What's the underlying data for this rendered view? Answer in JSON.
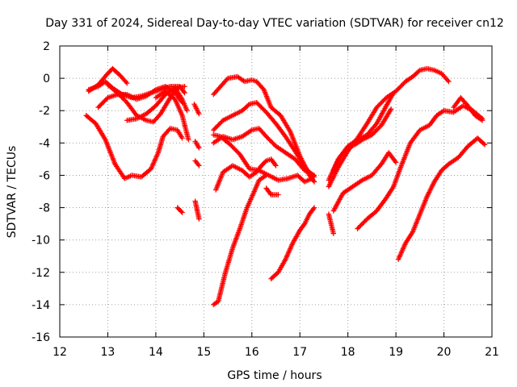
{
  "chart_data": {
    "type": "scatter",
    "title": "Day 331 of 2024, Sidereal Day-to-day VTEC variation (SDTVAR) for receiver cn12",
    "xlabel": "GPS time / hours",
    "ylabel": "SDTVAR / TECUs",
    "xlim": [
      12,
      21
    ],
    "ylim": [
      -16,
      2
    ],
    "xticks": [
      12,
      13,
      14,
      15,
      16,
      17,
      18,
      19,
      20,
      21
    ],
    "yticks": [
      -16,
      -14,
      -12,
      -10,
      -8,
      -6,
      -4,
      -2,
      0,
      2
    ],
    "grid": true,
    "marker": "+",
    "color": "#ff0000",
    "series": [
      {
        "name": "s1",
        "x": [
          12.6,
          12.8,
          13.0,
          13.1,
          13.25,
          13.4
        ],
        "y": [
          -0.8,
          -0.4,
          0.3,
          0.6,
          0.2,
          -0.3
        ]
      },
      {
        "name": "s2",
        "x": [
          12.6,
          12.8,
          12.95,
          13.1,
          13.3,
          13.5,
          13.7,
          13.9,
          14.1,
          14.3,
          14.5,
          14.6
        ],
        "y": [
          -0.7,
          -0.5,
          -0.2,
          -0.6,
          -1.0,
          -1.2,
          -1.1,
          -0.9,
          -0.7,
          -0.5,
          -0.5,
          -0.9
        ]
      },
      {
        "name": "s3",
        "x": [
          12.8,
          13.0,
          13.2,
          13.4,
          13.6,
          13.8,
          14.0,
          14.2,
          14.4,
          14.55
        ],
        "y": [
          -1.8,
          -1.2,
          -1.0,
          -1.0,
          -1.3,
          -1.1,
          -0.7,
          -0.5,
          -0.9,
          -1.5
        ]
      },
      {
        "name": "s4",
        "x": [
          13.0,
          13.2,
          13.4,
          13.6,
          13.8,
          13.95,
          14.1,
          14.3,
          14.45,
          14.6
        ],
        "y": [
          -0.4,
          -0.9,
          -1.5,
          -2.3,
          -2.6,
          -2.7,
          -2.2,
          -1.2,
          -0.6,
          -0.5
        ]
      },
      {
        "name": "s5",
        "x": [
          13.4,
          13.6,
          13.8,
          14.0,
          14.2,
          14.4,
          14.55,
          14.65
        ],
        "y": [
          -2.6,
          -2.5,
          -2.2,
          -1.7,
          -1.0,
          -0.6,
          -1.3,
          -2.0
        ]
      },
      {
        "name": "s6",
        "x": [
          14.0,
          14.2,
          14.4,
          14.55,
          14.68
        ],
        "y": [
          -1.2,
          -0.8,
          -1.3,
          -2.3,
          -3.8
        ]
      },
      {
        "name": "s7",
        "x": [
          12.55,
          12.75,
          12.95,
          13.15,
          13.35,
          13.5,
          13.7,
          13.9,
          14.05,
          14.15,
          14.3,
          14.45,
          14.55
        ],
        "y": [
          -2.3,
          -2.8,
          -3.8,
          -5.3,
          -6.2,
          -6.0,
          -6.1,
          -5.6,
          -4.6,
          -3.6,
          -3.1,
          -3.2,
          -3.7
        ]
      },
      {
        "name": "s8",
        "x": [
          14.45,
          14.55
        ],
        "y": [
          -8.0,
          -8.3
        ]
      },
      {
        "name": "s9",
        "x": [
          14.8,
          14.9
        ],
        "y": [
          -1.6,
          -2.2
        ]
      },
      {
        "name": "s10",
        "x": [
          14.82,
          14.9
        ],
        "y": [
          -3.9,
          -4.3
        ]
      },
      {
        "name": "s11",
        "x": [
          14.82,
          14.9
        ],
        "y": [
          -5.1,
          -5.4
        ]
      },
      {
        "name": "s12",
        "x": [
          14.82,
          14.9
        ],
        "y": [
          -7.6,
          -8.7
        ]
      },
      {
        "name": "s13",
        "x": [
          15.2,
          15.35,
          15.5,
          15.7,
          15.85,
          16.0,
          16.1,
          16.25,
          16.4,
          16.6,
          16.8,
          17.0,
          17.2,
          17.3
        ],
        "y": [
          -1.0,
          -0.5,
          0.0,
          0.1,
          -0.2,
          -0.1,
          -0.2,
          -0.7,
          -1.8,
          -2.3,
          -3.3,
          -4.8,
          -6.0,
          -6.4
        ]
      },
      {
        "name": "s14",
        "x": [
          15.2,
          15.4,
          15.6,
          15.8,
          15.95,
          16.1,
          16.3,
          16.5,
          16.7,
          16.9,
          17.1,
          17.3
        ],
        "y": [
          -3.2,
          -2.6,
          -2.3,
          -2.0,
          -1.6,
          -1.5,
          -2.1,
          -2.8,
          -3.6,
          -4.5,
          -5.5,
          -6.1
        ]
      },
      {
        "name": "s15",
        "x": [
          15.2,
          15.4,
          15.6,
          15.8,
          16.0,
          16.15,
          16.3,
          16.5,
          16.7,
          16.9,
          17.1,
          17.3
        ],
        "y": [
          -4.0,
          -3.6,
          -3.8,
          -3.6,
          -3.2,
          -3.1,
          -3.6,
          -4.2,
          -4.6,
          -5.0,
          -5.7,
          -6.0
        ]
      },
      {
        "name": "s16",
        "x": [
          15.2,
          15.35,
          15.55,
          15.75,
          15.95,
          16.15,
          16.35,
          16.55,
          16.75,
          16.95,
          17.1,
          17.25
        ],
        "y": [
          -3.5,
          -3.6,
          -4.1,
          -4.7,
          -5.6,
          -5.7,
          -6.0,
          -6.3,
          -6.2,
          -6.0,
          -6.4,
          -6.2
        ]
      },
      {
        "name": "s17",
        "x": [
          15.25,
          15.4,
          15.6,
          15.8,
          15.95,
          16.1,
          16.2,
          16.3,
          16.4,
          16.5
        ],
        "y": [
          -6.9,
          -5.8,
          -5.4,
          -5.7,
          -6.1,
          -5.8,
          -5.4,
          -5.1,
          -5.0,
          -5.4
        ]
      },
      {
        "name": "s18",
        "x": [
          16.3,
          16.4,
          16.55
        ],
        "y": [
          -6.8,
          -7.2,
          -7.2
        ]
      },
      {
        "name": "s19",
        "x": [
          15.2,
          15.3,
          15.45,
          15.6,
          15.75,
          15.9,
          16.05,
          16.15,
          16.3
        ],
        "y": [
          -14.0,
          -13.8,
          -12.0,
          -10.5,
          -9.3,
          -8.0,
          -7.0,
          -6.3,
          -6.0
        ]
      },
      {
        "name": "s20",
        "x": [
          16.4,
          16.55,
          16.7,
          16.85,
          17.0,
          17.1,
          17.2,
          17.3
        ],
        "y": [
          -12.4,
          -12.0,
          -11.2,
          -10.2,
          -9.4,
          -9.0,
          -8.4,
          -8.0
        ]
      },
      {
        "name": "s21",
        "x": [
          17.6,
          17.7
        ],
        "y": [
          -8.4,
          -9.6
        ]
      },
      {
        "name": "s22",
        "x": [
          17.6,
          17.8,
          18.0,
          18.2,
          18.4,
          18.6,
          18.8,
          19.0,
          19.2,
          19.35,
          19.5,
          19.65,
          19.8,
          19.95,
          20.1
        ],
        "y": [
          -6.7,
          -5.5,
          -4.5,
          -3.7,
          -2.8,
          -1.8,
          -1.2,
          -0.8,
          -0.2,
          0.1,
          0.5,
          0.6,
          0.5,
          0.3,
          -0.2
        ]
      },
      {
        "name": "s23",
        "x": [
          17.6,
          17.8,
          18.0,
          18.2,
          18.4,
          18.6,
          18.8,
          18.95
        ],
        "y": [
          -6.3,
          -5.0,
          -4.2,
          -3.8,
          -3.5,
          -2.8,
          -1.7,
          -0.9
        ]
      },
      {
        "name": "s24",
        "x": [
          17.7,
          17.85,
          18.0,
          18.15,
          18.3,
          18.5,
          18.7,
          18.9
        ],
        "y": [
          -5.7,
          -4.8,
          -4.3,
          -4.1,
          -3.8,
          -3.5,
          -2.9,
          -1.9
        ]
      },
      {
        "name": "s25",
        "x": [
          17.7,
          17.9,
          18.1,
          18.3,
          18.5,
          18.7,
          18.85,
          19.0
        ],
        "y": [
          -8.2,
          -7.1,
          -6.7,
          -6.3,
          -6.0,
          -5.3,
          -4.6,
          -5.2
        ]
      },
      {
        "name": "s26",
        "x": [
          18.2,
          18.4,
          18.6,
          18.8,
          18.95,
          19.1,
          19.3,
          19.5,
          19.7,
          19.85,
          20.0,
          20.2,
          20.4,
          20.6,
          20.8
        ],
        "y": [
          -9.3,
          -8.7,
          -8.2,
          -7.4,
          -6.7,
          -5.5,
          -4.0,
          -3.2,
          -2.9,
          -2.3,
          -2.0,
          -2.1,
          -1.7,
          -2.0,
          -2.5
        ]
      },
      {
        "name": "s27",
        "x": [
          19.05,
          19.2,
          19.35,
          19.5,
          19.65,
          19.8,
          19.95,
          20.1,
          20.3,
          20.5,
          20.7,
          20.85
        ],
        "y": [
          -11.2,
          -10.2,
          -9.5,
          -8.4,
          -7.3,
          -6.4,
          -5.7,
          -5.3,
          -4.9,
          -4.2,
          -3.7,
          -4.1
        ]
      },
      {
        "name": "s28",
        "x": [
          20.2,
          20.35,
          20.5,
          20.65,
          20.8
        ],
        "y": [
          -1.8,
          -1.2,
          -1.7,
          -2.3,
          -2.6
        ]
      }
    ]
  }
}
